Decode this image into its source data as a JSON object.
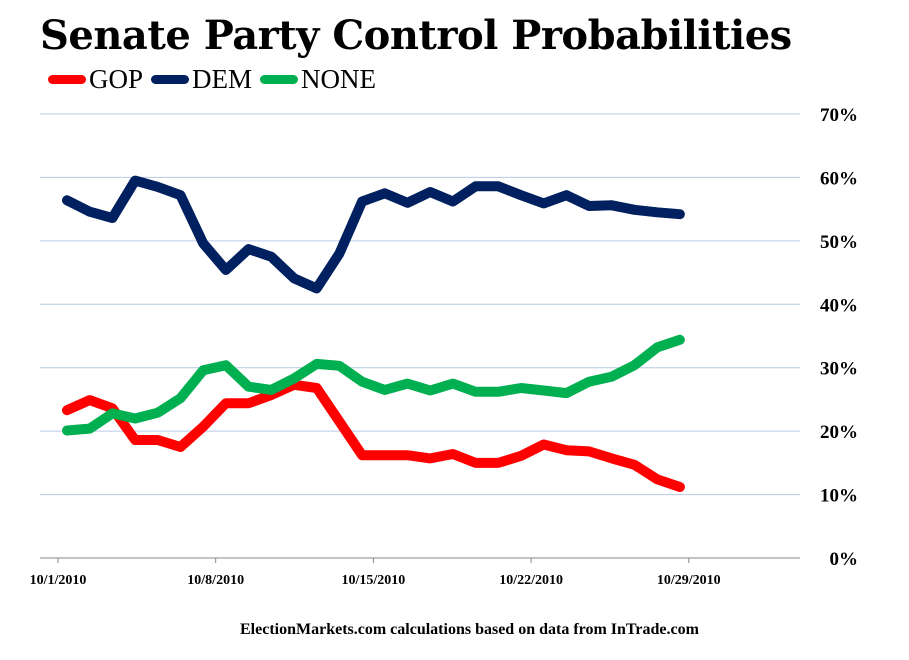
{
  "chart_data": {
    "type": "line",
    "title": "Senate Party Control Probabilities",
    "source_note": "ElectionMarkets.com calculations based on data from InTrade.com",
    "x": [
      "10/1/2010",
      "10/2/2010",
      "10/3/2010",
      "10/4/2010",
      "10/5/2010",
      "10/6/2010",
      "10/7/2010",
      "10/8/2010",
      "10/9/2010",
      "10/10/2010",
      "10/11/2010",
      "10/12/2010",
      "10/13/2010",
      "10/14/2010",
      "10/15/2010",
      "10/16/2010",
      "10/17/2010",
      "10/18/2010",
      "10/19/2010",
      "10/20/2010",
      "10/21/2010",
      "10/22/2010",
      "10/23/2010",
      "10/24/2010",
      "10/25/2010",
      "10/26/2010",
      "10/27/2010",
      "10/28/2010"
    ],
    "x_ticks": [
      "10/1/2010",
      "10/8/2010",
      "10/15/2010",
      "10/22/2010",
      "10/29/2010"
    ],
    "y_ticks": [
      "0%",
      "10%",
      "20%",
      "30%",
      "40%",
      "50%",
      "60%",
      "70%"
    ],
    "ylim": [
      0,
      70
    ],
    "y_unit": "%",
    "y_axis_side": "right",
    "grid": true,
    "legend_position": "top-left",
    "series": [
      {
        "name": "GOP",
        "color": "#ff0000",
        "values": [
          23.3,
          24.9,
          23.6,
          18.6,
          18.6,
          17.5,
          20.7,
          24.4,
          24.4,
          25.7,
          27.3,
          26.8,
          21.5,
          16.2,
          16.2,
          16.2,
          15.7,
          16.4,
          15.0,
          15.0,
          16.1,
          17.9,
          17.0,
          16.8,
          15.7,
          14.7,
          12.4,
          11.2
        ]
      },
      {
        "name": "DEM",
        "color": "#002060",
        "values": [
          56.4,
          54.6,
          53.6,
          59.5,
          58.5,
          57.2,
          49.6,
          45.4,
          48.7,
          47.5,
          44.1,
          42.5,
          48.0,
          56.2,
          57.5,
          56.0,
          57.7,
          56.2,
          58.6,
          58.6,
          57.2,
          55.9,
          57.2,
          55.5,
          55.6,
          54.9,
          54.5,
          54.2
        ]
      },
      {
        "name": "NONE",
        "color": "#00b050",
        "values": [
          20.1,
          20.4,
          22.8,
          22.0,
          22.9,
          25.2,
          29.6,
          30.4,
          27.0,
          26.5,
          28.3,
          30.6,
          30.3,
          27.8,
          26.5,
          27.5,
          26.4,
          27.5,
          26.2,
          26.2,
          26.8,
          26.4,
          26.0,
          27.8,
          28.6,
          30.4,
          33.2,
          34.4
        ]
      }
    ]
  }
}
